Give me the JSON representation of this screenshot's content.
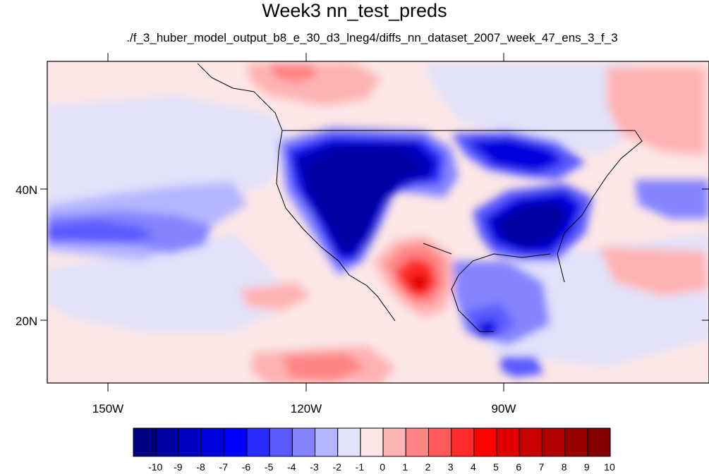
{
  "title": "Week3 nn_test_preds",
  "subtitle": "./f_3_huber_model_output_b8_e_30_d3_lneg4/diffs_nn_dataset_2007_week_47_ens_3_f_3",
  "map": {
    "lat_labels": [
      "40N",
      "20N"
    ],
    "lon_labels": [
      "150W",
      "120W",
      "90W"
    ]
  },
  "colorbar": {
    "labels": [
      "-10",
      "-9",
      "-8",
      "-7",
      "-6",
      "-5",
      "-4",
      "-3",
      "-2",
      "-1",
      "0",
      "1",
      "2",
      "3",
      "4",
      "5",
      "6",
      "7",
      "8",
      "9",
      "10"
    ],
    "colors": [
      "#000080",
      "#0000A0",
      "#0000C0",
      "#0000DF",
      "#0000FF",
      "#2A2AFF",
      "#5A5AFF",
      "#8484FF",
      "#B5B5FF",
      "#E2E2FA",
      "#FCE6E6",
      "#FFB4B4",
      "#FF8484",
      "#FF5A5A",
      "#FF2A2A",
      "#FF0000",
      "#E00000",
      "#C80000",
      "#B00000",
      "#980000",
      "#800000"
    ]
  }
}
